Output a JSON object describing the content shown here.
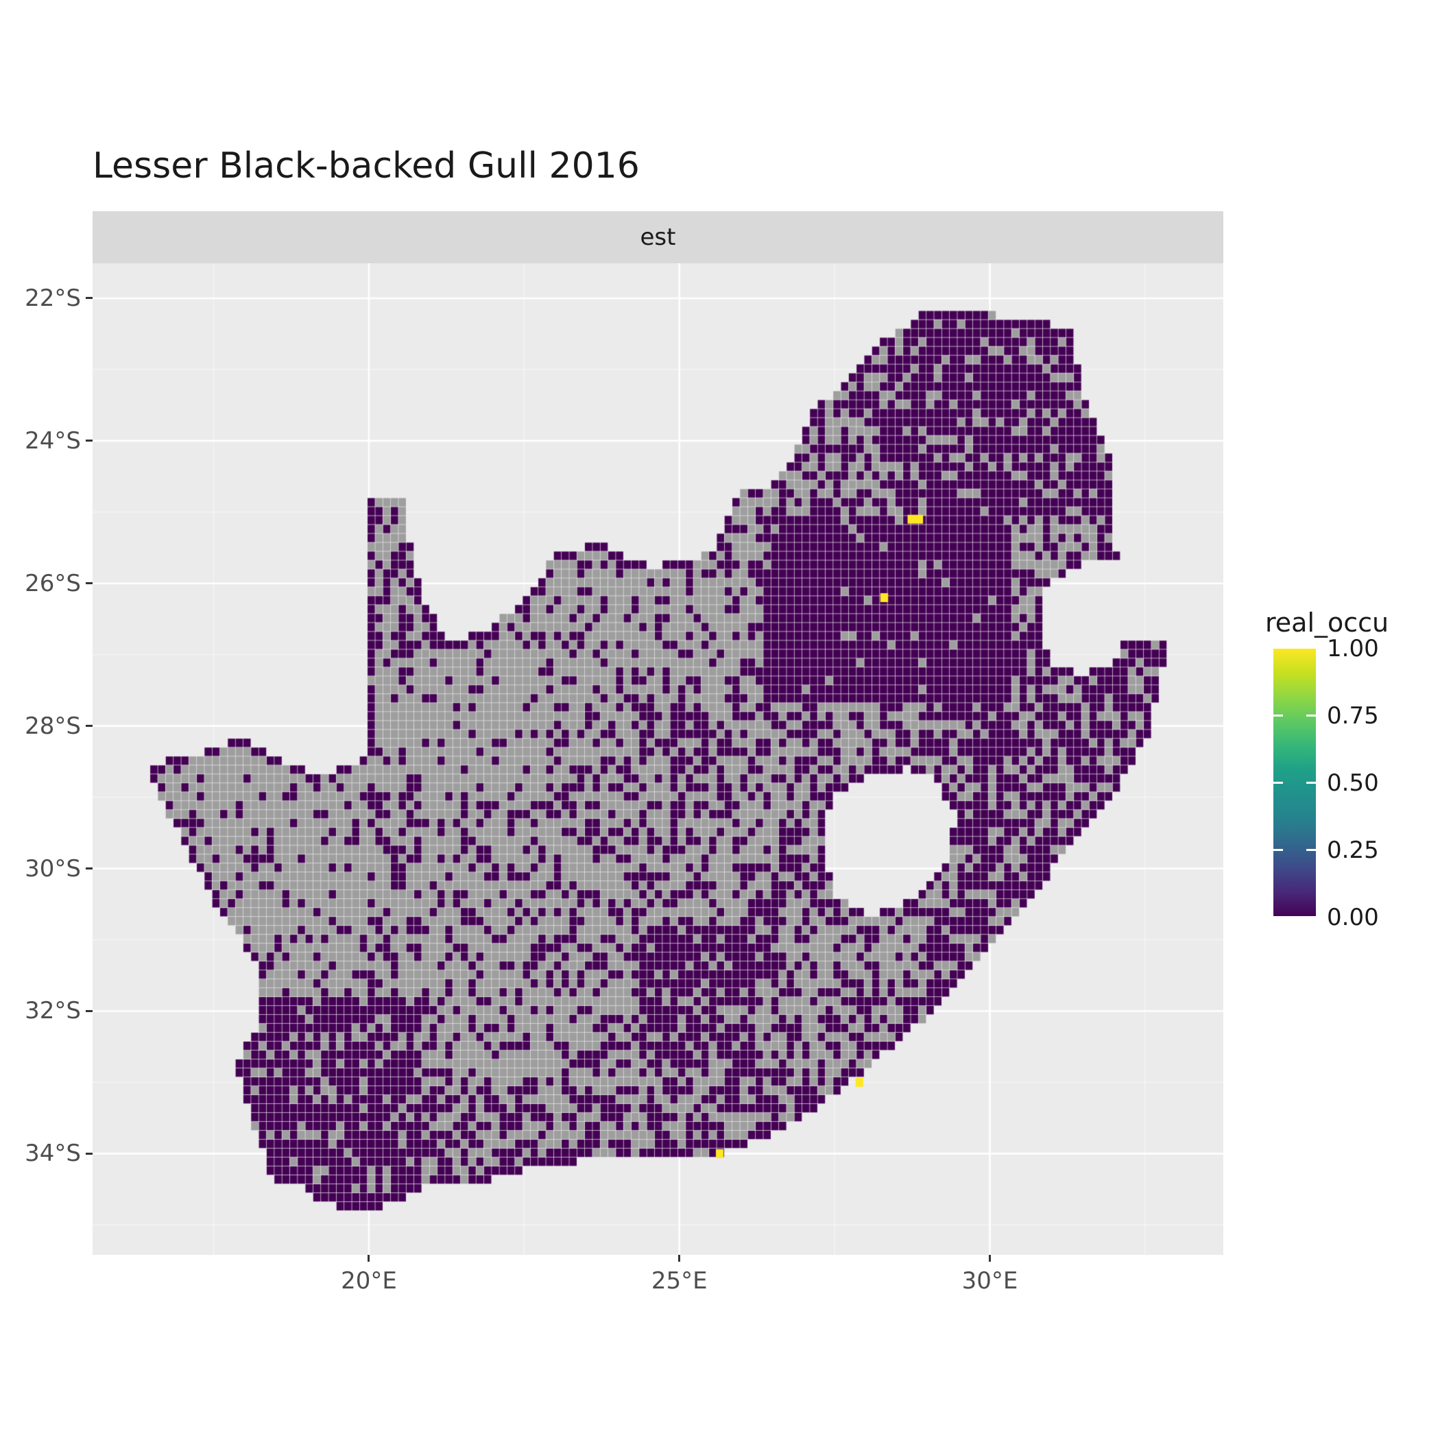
{
  "title": "Lesser Black-backed Gull 2016",
  "facet_label": "est",
  "axes": {
    "x_ticks": [
      {
        "label": "20°E",
        "value": 20
      },
      {
        "label": "25°E",
        "value": 25
      },
      {
        "label": "30°E",
        "value": 30
      }
    ],
    "y_ticks": [
      {
        "label": "22°S",
        "value": -22
      },
      {
        "label": "24°S",
        "value": -24
      },
      {
        "label": "26°S",
        "value": -26
      },
      {
        "label": "28°S",
        "value": -28
      },
      {
        "label": "30°S",
        "value": -30
      },
      {
        "label": "32°S",
        "value": -32
      },
      {
        "label": "34°S",
        "value": -34
      }
    ]
  },
  "legend": {
    "title": "real_occu",
    "ticks": [
      {
        "label": "1.00",
        "value": 1.0
      },
      {
        "label": "0.75",
        "value": 0.75
      },
      {
        "label": "0.50",
        "value": 0.5
      },
      {
        "label": "0.25",
        "value": 0.25
      },
      {
        "label": "0.00",
        "value": 0.0
      }
    ],
    "viridis_stops": [
      "#440154",
      "#482878",
      "#3E4A89",
      "#31688E",
      "#26828E",
      "#21918C",
      "#1FA088",
      "#35B779",
      "#5EC962",
      "#90D743",
      "#C8E020",
      "#FDE725"
    ]
  },
  "chart_data": {
    "type": "heatmap",
    "subtype": "geographic raster map of South Africa (grid-cell occupancy)",
    "title": "Lesser Black-backed Gull 2016",
    "facet": "est",
    "legend_title": "real_occu",
    "value_scale": {
      "min": 0.0,
      "max": 1.0
    },
    "value_colors": {
      "0.00": "#440154",
      "1.00": "#FDE725",
      "NA": "#9E9E9E"
    },
    "panel_background": "#EBEBEB",
    "strip_background": "#D9D9D9",
    "gridline_color": "#FFFFFF",
    "extent": {
      "lon": [
        15.55,
        33.76
      ],
      "lat": [
        -35.42,
        -21.51
      ]
    },
    "cell_deg": 0.125,
    "seed": 20,
    "note": "Most mapped cells have real_occu = 0 (dark purple); grey cells are NA/unsampled; isolated yellow cells have real_occu = 1 and are listed in occupied_cells.",
    "occupied_cells": [
      {
        "lon": 28.8,
        "lat": -25.1,
        "w": 2
      },
      {
        "lon": 28.3,
        "lat": -26.2,
        "w": 1
      },
      {
        "lon": 27.9,
        "lat": -33.0,
        "w": 1
      },
      {
        "lon": 25.65,
        "lat": -34.0,
        "w": 1
      }
    ],
    "boundary_south_africa": [
      [
        16.45,
        -28.6
      ],
      [
        16.65,
        -29.0
      ],
      [
        17.05,
        -29.7
      ],
      [
        17.6,
        -30.6
      ],
      [
        18.25,
        -31.4
      ],
      [
        18.25,
        -32.1
      ],
      [
        17.85,
        -32.8
      ],
      [
        18.05,
        -33.3
      ],
      [
        18.3,
        -34.0
      ],
      [
        18.45,
        -34.35
      ],
      [
        18.8,
        -34.4
      ],
      [
        19.1,
        -34.6
      ],
      [
        19.8,
        -34.85
      ],
      [
        20.3,
        -34.7
      ],
      [
        21.0,
        -34.45
      ],
      [
        21.8,
        -34.4
      ],
      [
        22.6,
        -34.2
      ],
      [
        23.4,
        -34.1
      ],
      [
        24.2,
        -34.1
      ],
      [
        25.0,
        -34.0
      ],
      [
        25.65,
        -34.02
      ],
      [
        26.0,
        -33.9
      ],
      [
        26.8,
        -33.6
      ],
      [
        27.6,
        -33.1
      ],
      [
        28.4,
        -32.5
      ],
      [
        29.2,
        -31.9
      ],
      [
        30.0,
        -31.1
      ],
      [
        30.7,
        -30.4
      ],
      [
        31.3,
        -29.6
      ],
      [
        32.05,
        -28.9
      ],
      [
        32.55,
        -28.1
      ],
      [
        32.89,
        -26.86
      ],
      [
        32.13,
        -26.85
      ],
      [
        31.97,
        -27.1
      ],
      [
        31.5,
        -27.3
      ],
      [
        30.95,
        -27.1
      ],
      [
        30.8,
        -26.6
      ],
      [
        30.9,
        -26.0
      ],
      [
        31.4,
        -25.75
      ],
      [
        32.05,
        -25.65
      ],
      [
        32.0,
        -25.1
      ],
      [
        31.95,
        -24.3
      ],
      [
        31.55,
        -23.5
      ],
      [
        31.3,
        -22.4
      ],
      [
        30.35,
        -22.3
      ],
      [
        29.7,
        -22.15
      ],
      [
        29.05,
        -22.15
      ],
      [
        28.25,
        -22.6
      ],
      [
        27.75,
        -23.15
      ],
      [
        27.15,
        -23.55
      ],
      [
        26.85,
        -24.25
      ],
      [
        26.45,
        -24.65
      ],
      [
        25.9,
        -24.75
      ],
      [
        25.6,
        -25.45
      ],
      [
        25.3,
        -25.7
      ],
      [
        24.5,
        -25.75
      ],
      [
        23.7,
        -25.45
      ],
      [
        23.0,
        -25.6
      ],
      [
        22.6,
        -26.15
      ],
      [
        21.9,
        -26.65
      ],
      [
        21.3,
        -26.85
      ],
      [
        20.85,
        -26.15
      ],
      [
        20.65,
        -25.4
      ],
      [
        20.65,
        -24.75
      ],
      [
        19.95,
        -24.75
      ],
      [
        19.95,
        -28.45
      ],
      [
        19.3,
        -28.7
      ],
      [
        18.6,
        -28.5
      ],
      [
        18.0,
        -28.15
      ],
      [
        17.4,
        -28.35
      ],
      [
        16.8,
        -28.45
      ]
    ],
    "hole_lesotho": [
      [
        27.3,
        -29.3
      ],
      [
        27.35,
        -29.95
      ],
      [
        27.55,
        -30.4
      ],
      [
        28.1,
        -30.65
      ],
      [
        28.85,
        -30.4
      ],
      [
        29.3,
        -29.95
      ],
      [
        29.45,
        -29.3
      ],
      [
        29.15,
        -28.75
      ],
      [
        28.65,
        -28.6
      ],
      [
        28.05,
        -28.7
      ],
      [
        27.55,
        -28.95
      ]
    ],
    "density_regions": [
      {
        "rect": [
          15.0,
          34.0,
          -36.0,
          -21.0
        ],
        "p": 0.35
      },
      {
        "rect": [
          16.4,
          23.0,
          -31.8,
          -26.0
        ],
        "p": 0.13
      },
      {
        "rect": [
          16.4,
          18.6,
          -31.5,
          -28.4
        ],
        "p": 0.2
      },
      {
        "rect": [
          19.8,
          21.1,
          -27.2,
          -24.6
        ],
        "p": 0.45
      },
      {
        "rect": [
          21.0,
          25.2,
          -26.9,
          -25.3
        ],
        "p": 0.33
      },
      {
        "rect": [
          22.8,
          26.3,
          -28.6,
          -25.8
        ],
        "p": 0.25
      },
      {
        "rect": [
          20.0,
          24.6,
          -32.6,
          -28.8
        ],
        "p": 0.32
      },
      {
        "rect": [
          21.0,
          24.3,
          -33.1,
          -30.9
        ],
        "p": 0.28
      },
      {
        "rect": [
          24.0,
          27.0,
          -31.0,
          -27.3
        ],
        "p": 0.38
      },
      {
        "rect": [
          26.3,
          28.6,
          -25.2,
          -22.3
        ],
        "p": 0.5
      },
      {
        "rect": [
          28.4,
          32.2,
          -25.2,
          -22.0
        ],
        "p": 0.8
      },
      {
        "rect": [
          29.0,
          33.0,
          -31.8,
          -26.8
        ],
        "p": 0.66
      },
      {
        "rect": [
          26.4,
          30.4,
          -27.7,
          -25.1
        ],
        "p": 0.94
      },
      {
        "rect": [
          27.0,
          29.2,
          -30.8,
          -27.7
        ],
        "p": 0.45
      },
      {
        "rect": [
          24.3,
          26.6,
          -32.8,
          -30.8
        ],
        "p": 0.78
      },
      {
        "rect": [
          26.2,
          29.5,
          -33.6,
          -31.6
        ],
        "p": 0.45
      },
      {
        "rect": [
          17.6,
          20.9,
          -35.0,
          -31.8
        ],
        "p": 0.8
      },
      {
        "rect": [
          20.9,
          27.2,
          -35.0,
          -33.1
        ],
        "p": 0.5
      }
    ],
    "border_band": {
      "dist_deg": 0.09,
      "p": 0.9
    }
  }
}
